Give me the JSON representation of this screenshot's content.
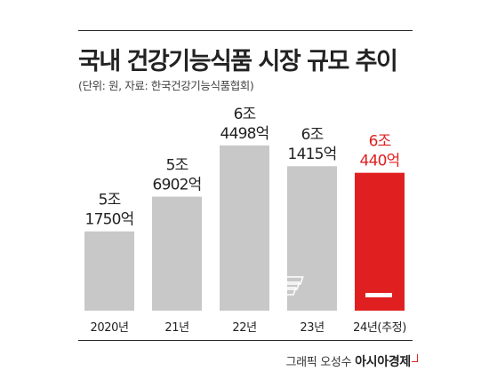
{
  "header": {
    "title": "국내 건강기능식품 시장 규모 추이",
    "subtitle": "(단위: 원, 자료: 한국건강기능식품협회)"
  },
  "footer": {
    "credit_prefix": "그래픽 오성수",
    "brand": "아시아경제"
  },
  "colors": {
    "bar": "#c8c8c8",
    "highlight": "#e02020",
    "text": "#222222"
  },
  "icons": {
    "highlight_bar_icon": "money-stack-icon"
  },
  "chart_data": {
    "type": "bar",
    "title": "국내 건강기능식품 시장 규모 추이",
    "categories": [
      "2020년",
      "21년",
      "22년",
      "23년",
      "24년(추정)"
    ],
    "values": [
      51750,
      56902,
      64498,
      61415,
      60440
    ],
    "value_unit": "억 원",
    "data_labels": [
      [
        "5조",
        "1750억"
      ],
      [
        "5조",
        "6902억"
      ],
      [
        "6조",
        "4498억"
      ],
      [
        "6조",
        "1415억"
      ],
      [
        "6조",
        "440억"
      ]
    ],
    "highlight_index": 4,
    "xlabel": "",
    "ylabel": "",
    "ylim": [
      40000,
      65000
    ],
    "grid": false,
    "legend": "none"
  }
}
